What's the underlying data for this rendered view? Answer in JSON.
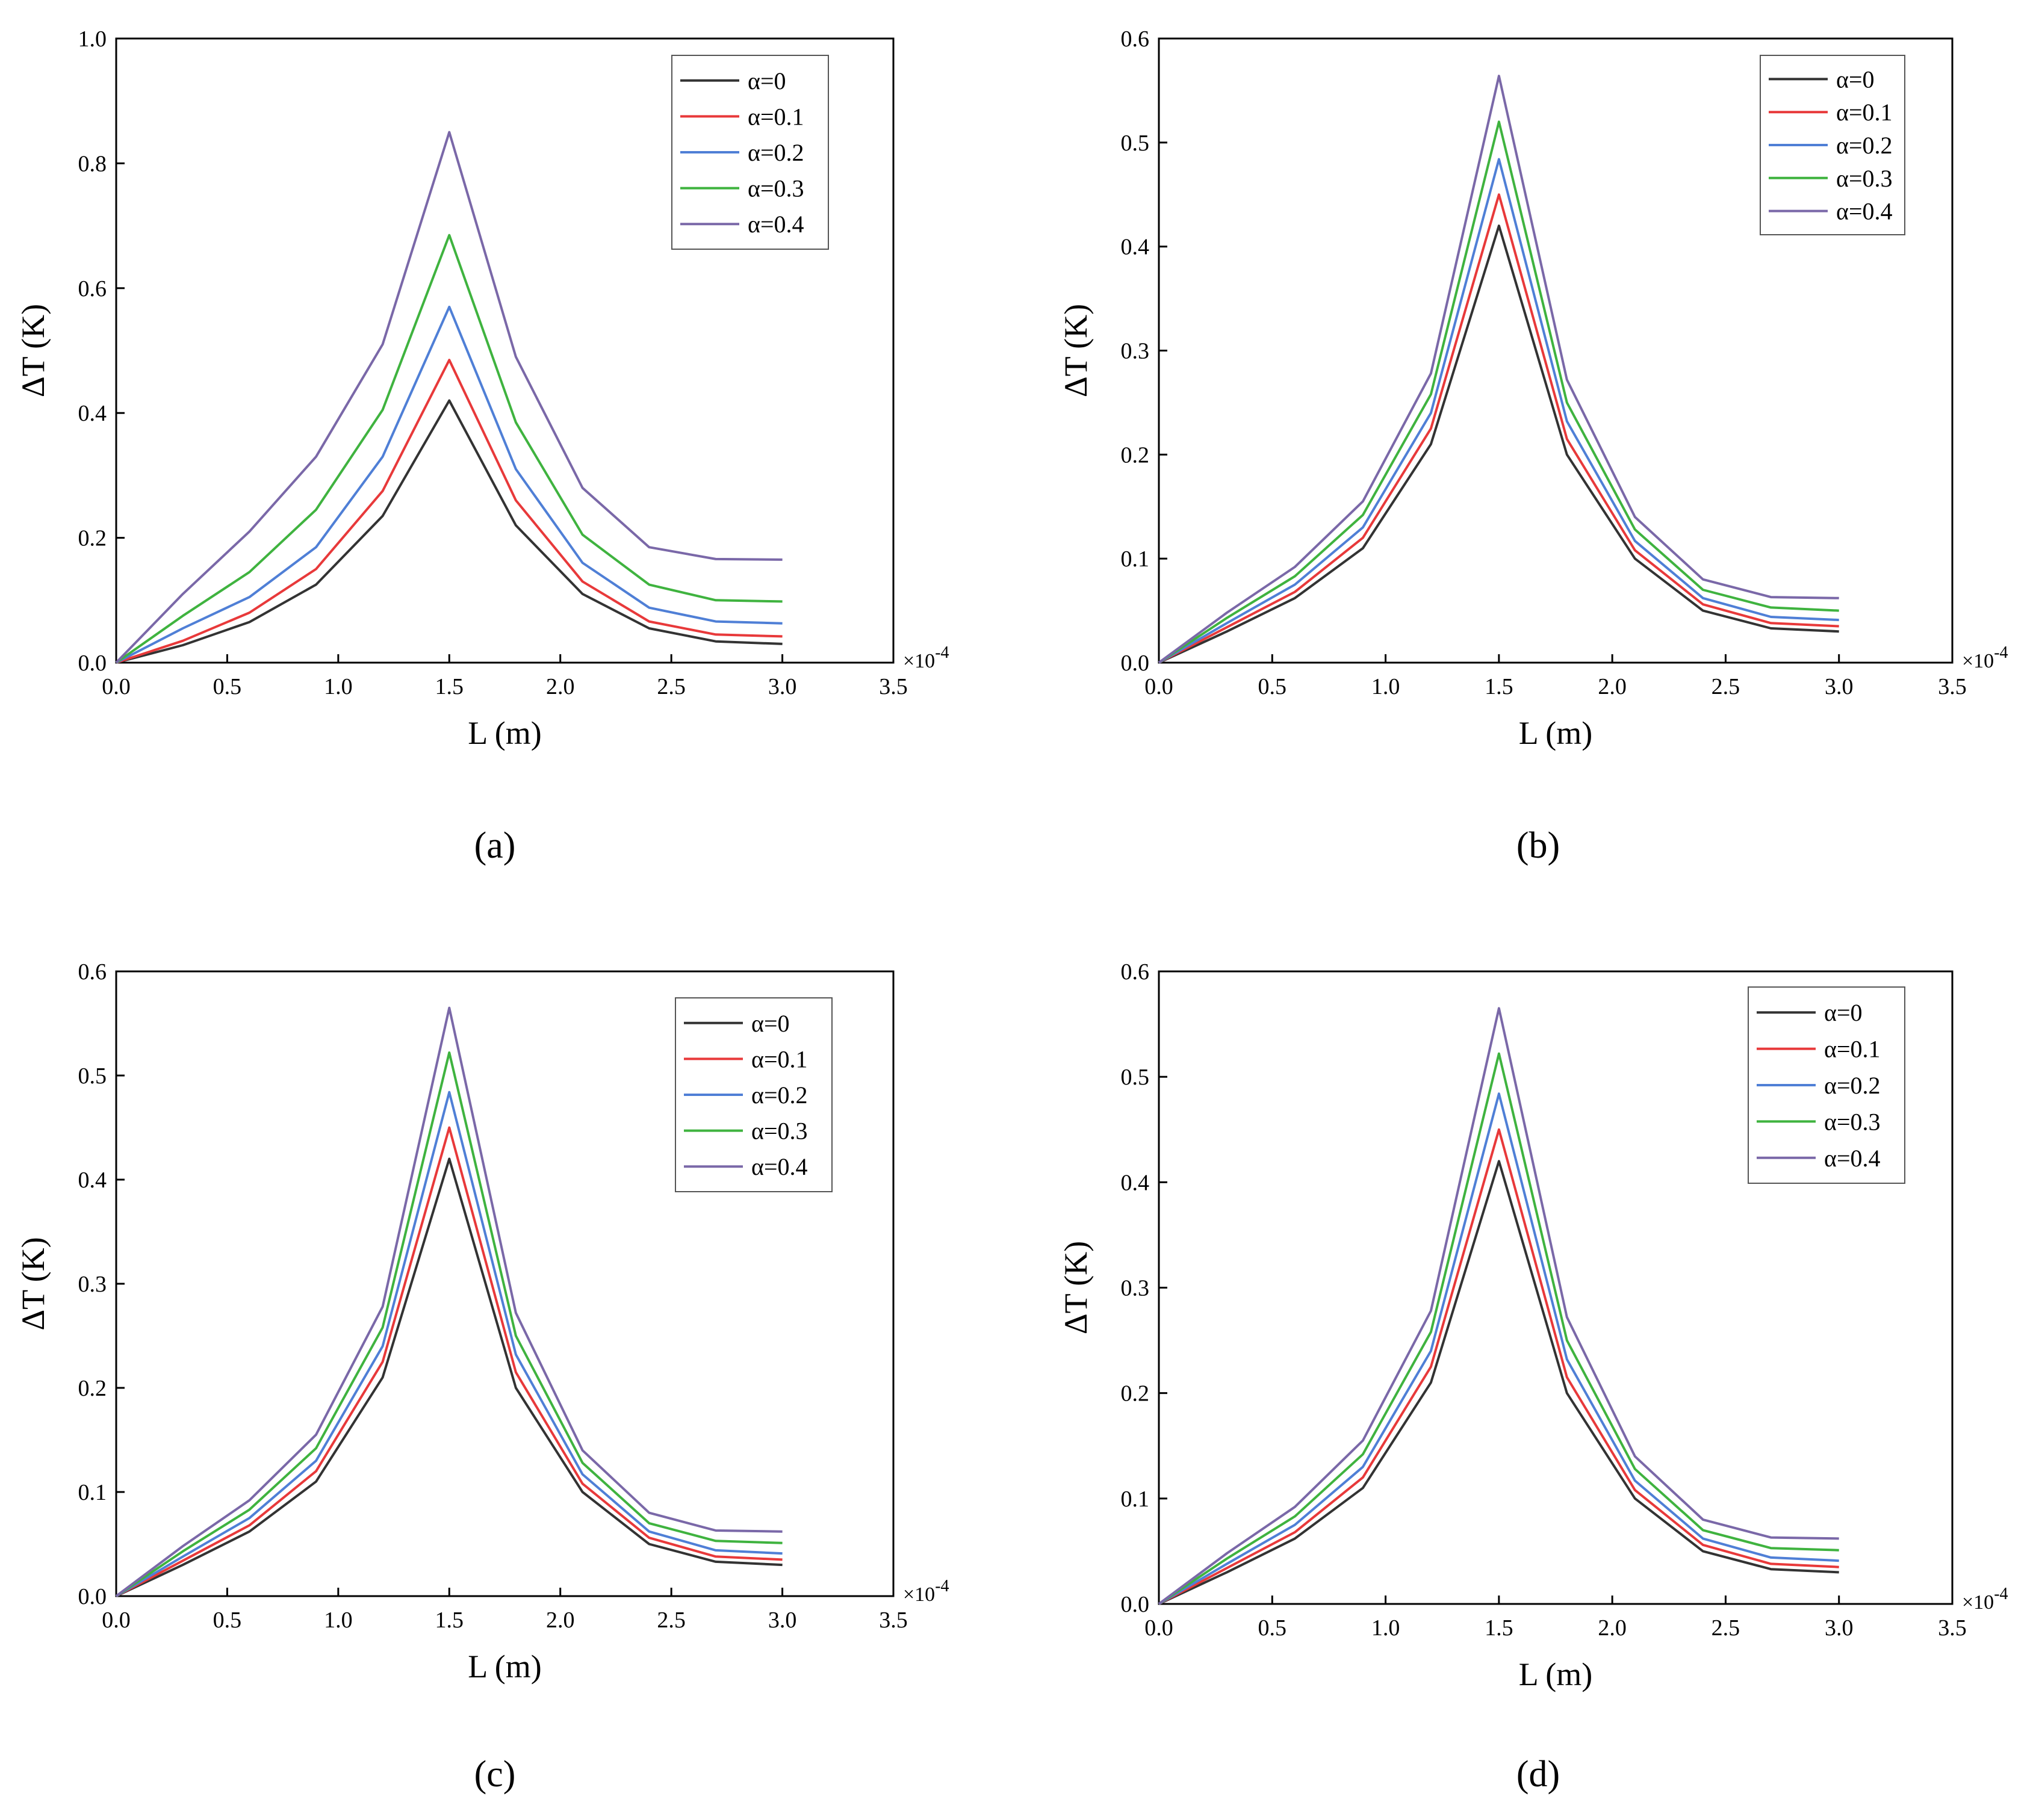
{
  "chart_data": [
    {
      "type": "line",
      "caption": "(a)",
      "xlabel": "L (m)",
      "ylabel": "ΔT (K)",
      "x_multiplier": "×10",
      "x_multiplier_exp": "-4",
      "xlim": [
        0,
        3.5
      ],
      "ylim": [
        0,
        1.0
      ],
      "xticks": [
        "0.0",
        "0.5",
        "1.0",
        "1.5",
        "2.0",
        "2.5",
        "3.0",
        "3.5"
      ],
      "yticks": [
        "0.0",
        "0.2",
        "0.4",
        "0.6",
        "0.8",
        "1.0"
      ],
      "legend_position": "top-right",
      "x": [
        0,
        0.3,
        0.6,
        0.9,
        1.2,
        1.5,
        1.8,
        2.1,
        2.4,
        2.7,
        3.0
      ],
      "series": [
        {
          "name": "α=0",
          "color": "#333333",
          "values": [
            0,
            0.028,
            0.065,
            0.125,
            0.235,
            0.42,
            0.22,
            0.11,
            0.055,
            0.034,
            0.03
          ]
        },
        {
          "name": "α=0.1",
          "color": "#e8393a",
          "values": [
            0,
            0.035,
            0.08,
            0.15,
            0.275,
            0.485,
            0.26,
            0.13,
            0.066,
            0.045,
            0.042
          ]
        },
        {
          "name": "α=0.2",
          "color": "#4f7fd6",
          "values": [
            0,
            0.055,
            0.105,
            0.185,
            0.33,
            0.57,
            0.31,
            0.16,
            0.088,
            0.066,
            0.063
          ]
        },
        {
          "name": "α=0.3",
          "color": "#3fb33f",
          "values": [
            0,
            0.075,
            0.145,
            0.245,
            0.405,
            0.685,
            0.385,
            0.205,
            0.125,
            0.1,
            0.098
          ]
        },
        {
          "name": "α=0.4",
          "color": "#7a68a8",
          "values": [
            0,
            0.11,
            0.21,
            0.33,
            0.51,
            0.85,
            0.49,
            0.28,
            0.185,
            0.166,
            0.165
          ]
        }
      ]
    },
    {
      "type": "line",
      "caption": "(b)",
      "xlabel": "L (m)",
      "ylabel": "ΔT (K)",
      "x_multiplier": "×10",
      "x_multiplier_exp": "-4",
      "xlim": [
        0,
        3.5
      ],
      "ylim": [
        0,
        0.6
      ],
      "xticks": [
        "0.0",
        "0.5",
        "1.0",
        "1.5",
        "2.0",
        "2.5",
        "3.0",
        "3.5"
      ],
      "yticks": [
        "0.0",
        "0.1",
        "0.2",
        "0.3",
        "0.4",
        "0.5",
        "0.6"
      ],
      "legend_position": "top-right",
      "x": [
        0,
        0.3,
        0.6,
        0.9,
        1.2,
        1.5,
        1.8,
        2.1,
        2.4,
        2.7,
        3.0
      ],
      "series": [
        {
          "name": "α=0",
          "color": "#333333",
          "values": [
            0,
            0.03,
            0.062,
            0.11,
            0.21,
            0.42,
            0.2,
            0.1,
            0.05,
            0.033,
            0.03
          ]
        },
        {
          "name": "α=0.1",
          "color": "#e8393a",
          "values": [
            0,
            0.034,
            0.068,
            0.12,
            0.225,
            0.45,
            0.215,
            0.108,
            0.056,
            0.038,
            0.035
          ]
        },
        {
          "name": "α=0.2",
          "color": "#4f7fd6",
          "values": [
            0,
            0.038,
            0.075,
            0.13,
            0.24,
            0.484,
            0.232,
            0.117,
            0.062,
            0.044,
            0.041
          ]
        },
        {
          "name": "α=0.3",
          "color": "#3fb33f",
          "values": [
            0,
            0.043,
            0.083,
            0.142,
            0.258,
            0.52,
            0.25,
            0.128,
            0.07,
            0.053,
            0.05
          ]
        },
        {
          "name": "α=0.4",
          "color": "#7a68a8",
          "values": [
            0,
            0.048,
            0.092,
            0.155,
            0.278,
            0.564,
            0.272,
            0.14,
            0.08,
            0.063,
            0.062
          ]
        }
      ]
    },
    {
      "type": "line",
      "caption": "(c)",
      "xlabel": "L (m)",
      "ylabel": "ΔT (K)",
      "x_multiplier": "×10",
      "x_multiplier_exp": "-4",
      "xlim": [
        0,
        3.5
      ],
      "ylim": [
        0,
        0.6
      ],
      "xticks": [
        "0.0",
        "0.5",
        "1.0",
        "1.5",
        "2.0",
        "2.5",
        "3.0",
        "3.5"
      ],
      "yticks": [
        "0.0",
        "0.1",
        "0.2",
        "0.3",
        "0.4",
        "0.5",
        "0.6"
      ],
      "legend_position": "top-right",
      "x": [
        0,
        0.3,
        0.6,
        0.9,
        1.2,
        1.5,
        1.8,
        2.1,
        2.4,
        2.7,
        3.0
      ],
      "series": [
        {
          "name": "α=0",
          "color": "#333333",
          "values": [
            0,
            0.03,
            0.062,
            0.11,
            0.21,
            0.42,
            0.2,
            0.1,
            0.05,
            0.033,
            0.03
          ]
        },
        {
          "name": "α=0.1",
          "color": "#e8393a",
          "values": [
            0,
            0.034,
            0.068,
            0.12,
            0.225,
            0.45,
            0.215,
            0.108,
            0.056,
            0.038,
            0.035
          ]
        },
        {
          "name": "α=0.2",
          "color": "#4f7fd6",
          "values": [
            0,
            0.038,
            0.075,
            0.13,
            0.24,
            0.484,
            0.232,
            0.117,
            0.062,
            0.044,
            0.041
          ]
        },
        {
          "name": "α=0.3",
          "color": "#3fb33f",
          "values": [
            0,
            0.043,
            0.083,
            0.142,
            0.258,
            0.522,
            0.25,
            0.128,
            0.07,
            0.053,
            0.051
          ]
        },
        {
          "name": "α=0.4",
          "color": "#7a68a8",
          "values": [
            0,
            0.048,
            0.092,
            0.155,
            0.278,
            0.565,
            0.272,
            0.14,
            0.08,
            0.063,
            0.062
          ]
        }
      ]
    },
    {
      "type": "line",
      "caption": "(d)",
      "xlabel": "L (m)",
      "ylabel": "ΔT (K)",
      "x_multiplier": "×10",
      "x_multiplier_exp": "-4",
      "xlim": [
        0,
        3.5
      ],
      "ylim": [
        0,
        0.6
      ],
      "xticks": [
        "0.0",
        "0.5",
        "1.0",
        "1.5",
        "2.0",
        "2.5",
        "3.0",
        "3.5"
      ],
      "yticks": [
        "0.0",
        "0.1",
        "0.2",
        "0.3",
        "0.4",
        "0.5",
        "0.6"
      ],
      "legend_position": "top-right",
      "x": [
        0,
        0.3,
        0.6,
        0.9,
        1.2,
        1.5,
        1.8,
        2.1,
        2.4,
        2.7,
        3.0
      ],
      "series": [
        {
          "name": "α=0",
          "color": "#333333",
          "values": [
            0,
            0.03,
            0.062,
            0.11,
            0.21,
            0.42,
            0.2,
            0.1,
            0.05,
            0.033,
            0.03
          ]
        },
        {
          "name": "α=0.1",
          "color": "#e8393a",
          "values": [
            0,
            0.034,
            0.068,
            0.12,
            0.225,
            0.45,
            0.215,
            0.108,
            0.056,
            0.038,
            0.035
          ]
        },
        {
          "name": "α=0.2",
          "color": "#4f7fd6",
          "values": [
            0,
            0.038,
            0.075,
            0.13,
            0.24,
            0.484,
            0.232,
            0.117,
            0.062,
            0.044,
            0.041
          ]
        },
        {
          "name": "α=0.3",
          "color": "#3fb33f",
          "values": [
            0,
            0.043,
            0.083,
            0.142,
            0.258,
            0.522,
            0.25,
            0.128,
            0.07,
            0.053,
            0.051
          ]
        },
        {
          "name": "α=0.4",
          "color": "#7a68a8",
          "values": [
            0,
            0.048,
            0.092,
            0.155,
            0.278,
            0.565,
            0.272,
            0.14,
            0.08,
            0.063,
            0.062
          ]
        }
      ]
    }
  ]
}
